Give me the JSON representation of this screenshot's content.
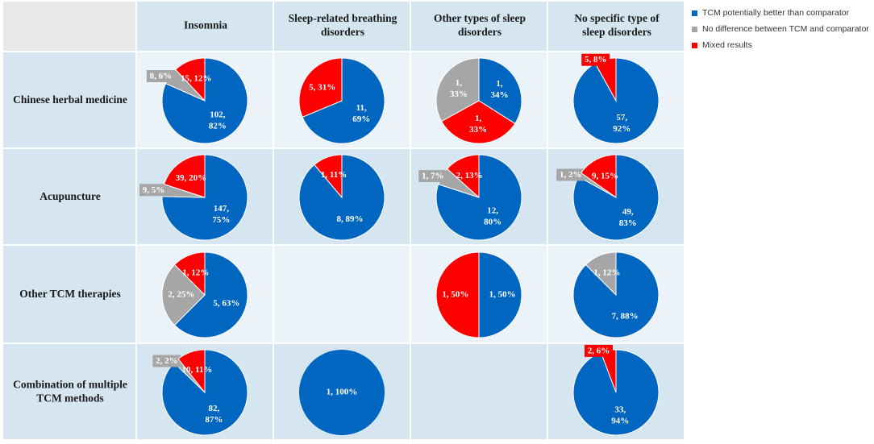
{
  "colors": {
    "better": "#0066BF",
    "no_diff": "#A6A6A6",
    "mixed": "#FF0000",
    "header_bg": "#D6E6F0",
    "corner_bg": "#E8E8E8",
    "row_dark": "#D6E6F0",
    "row_light": "#EBF3F8"
  },
  "chart_data": {
    "type": "pie",
    "title": "",
    "columns": [
      "Insomnia",
      "Sleep-related breathing disorders",
      "Other types of sleep disorders",
      "No specific type of sleep disorders"
    ],
    "rows": [
      "Chinese herbal medicine",
      "Acupuncture",
      "Other TCM therapies",
      "Combination of multiple TCM methods"
    ],
    "legend": [
      {
        "key": "better",
        "label": "TCM potentially better than comparator"
      },
      {
        "key": "no_diff",
        "label": "No difference between TCM and comparator"
      },
      {
        "key": "mixed",
        "label": "Mixed results"
      }
    ],
    "cells": [
      {
        "row": 0,
        "col": 0,
        "slices": [
          {
            "cat": "better",
            "value": 102,
            "label": "102, 82%"
          },
          {
            "cat": "no_diff",
            "value": 8,
            "label": "8, 6%"
          },
          {
            "cat": "mixed",
            "value": 15,
            "label": "15, 12%"
          }
        ]
      },
      {
        "row": 0,
        "col": 1,
        "slices": [
          {
            "cat": "better",
            "value": 11,
            "label": "11, 69%"
          },
          {
            "cat": "mixed",
            "value": 5,
            "label": "5, 31%"
          }
        ]
      },
      {
        "row": 0,
        "col": 2,
        "slices": [
          {
            "cat": "better",
            "value": 1.02,
            "label": "1, 34%"
          },
          {
            "cat": "mixed",
            "value": 0.99,
            "label": "1, 33%"
          },
          {
            "cat": "no_diff",
            "value": 0.99,
            "label": "1, 33%"
          }
        ]
      },
      {
        "row": 0,
        "col": 3,
        "slices": [
          {
            "cat": "better",
            "value": 57,
            "label": "57, 92%"
          },
          {
            "cat": "mixed",
            "value": 5,
            "label": "5, 8%"
          }
        ]
      },
      {
        "row": 1,
        "col": 0,
        "slices": [
          {
            "cat": "better",
            "value": 147,
            "label": "147, 75%"
          },
          {
            "cat": "no_diff",
            "value": 9,
            "label": "9, 5%"
          },
          {
            "cat": "mixed",
            "value": 39,
            "label": "39, 20%"
          }
        ]
      },
      {
        "row": 1,
        "col": 1,
        "slices": [
          {
            "cat": "better",
            "value": 8,
            "label": "8, 89%"
          },
          {
            "cat": "mixed",
            "value": 1,
            "label": "1, 11%"
          }
        ]
      },
      {
        "row": 1,
        "col": 2,
        "slices": [
          {
            "cat": "better",
            "value": 12,
            "label": "12, 80%"
          },
          {
            "cat": "no_diff",
            "value": 1,
            "label": "1, 7%"
          },
          {
            "cat": "mixed",
            "value": 2,
            "label": "2, 13%"
          }
        ]
      },
      {
        "row": 1,
        "col": 3,
        "slices": [
          {
            "cat": "better",
            "value": 49,
            "label": "49, 83%"
          },
          {
            "cat": "no_diff",
            "value": 1,
            "label": "1, 2%"
          },
          {
            "cat": "mixed",
            "value": 9,
            "label": "9, 15%"
          }
        ]
      },
      {
        "row": 2,
        "col": 0,
        "slices": [
          {
            "cat": "better",
            "value": 5,
            "label": "5, 63%"
          },
          {
            "cat": "no_diff",
            "value": 2,
            "label": "2, 25%"
          },
          {
            "cat": "mixed",
            "value": 1,
            "label": "1, 12%"
          }
        ]
      },
      {
        "row": 2,
        "col": 2,
        "slices": [
          {
            "cat": "better",
            "value": 1,
            "label": "1, 50%"
          },
          {
            "cat": "mixed",
            "value": 1,
            "label": "1, 50%"
          }
        ]
      },
      {
        "row": 2,
        "col": 3,
        "slices": [
          {
            "cat": "better",
            "value": 7,
            "label": "7, 88%"
          },
          {
            "cat": "no_diff",
            "value": 1,
            "label": "1, 12%"
          }
        ]
      },
      {
        "row": 3,
        "col": 0,
        "slices": [
          {
            "cat": "better",
            "value": 82,
            "label": "82, 87%"
          },
          {
            "cat": "no_diff",
            "value": 2,
            "label": "2, 2%"
          },
          {
            "cat": "mixed",
            "value": 10,
            "label": "10, 11%"
          }
        ]
      },
      {
        "row": 3,
        "col": 1,
        "slices": [
          {
            "cat": "better",
            "value": 1,
            "label": "1, 100%"
          }
        ]
      },
      {
        "row": 3,
        "col": 3,
        "slices": [
          {
            "cat": "better",
            "value": 33,
            "label": "33, 94%"
          },
          {
            "cat": "mixed",
            "value": 2,
            "label": "2, 6%"
          }
        ]
      }
    ]
  }
}
